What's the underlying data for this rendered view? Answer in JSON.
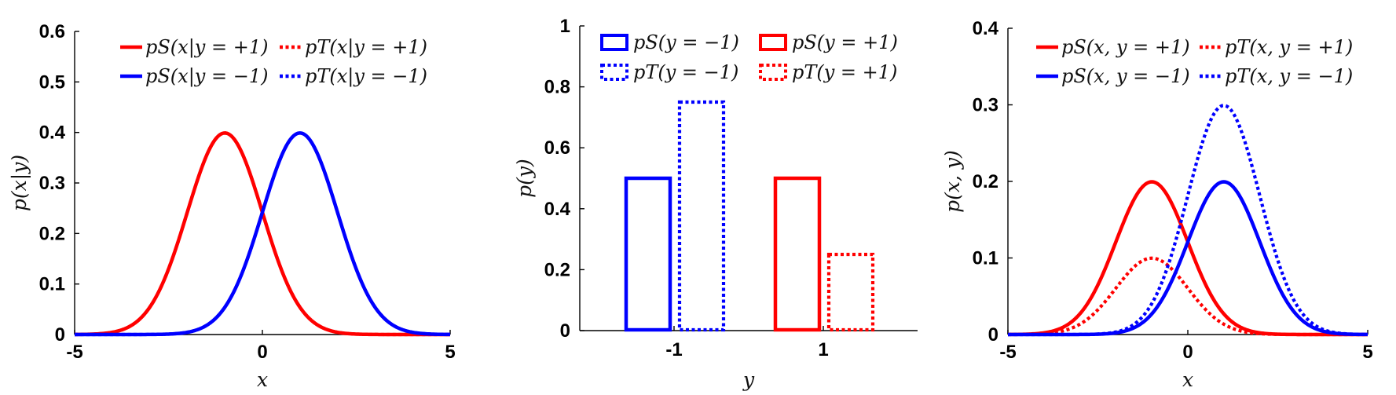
{
  "colors": {
    "red": "#ff0000",
    "blue": "#0000ff",
    "axis": "#000000"
  },
  "chart_data": [
    {
      "type": "line",
      "title": "",
      "xlabel": "x",
      "ylabel": "p(x|y)",
      "xlim": [
        -5,
        5
      ],
      "ylim": [
        0,
        0.6
      ],
      "xticks": [
        "-5",
        "0",
        "5"
      ],
      "yticks": [
        "0",
        "0.1",
        "0.2",
        "0.3",
        "0.4",
        "0.5",
        "0.6"
      ],
      "legend_placement": "top",
      "series": [
        {
          "name": "pS(x|y = +1)",
          "color": "#ff0000",
          "dash": "solid",
          "mean": -1,
          "sd": 1,
          "scale": 1,
          "peak": 0.4
        },
        {
          "name": "pT(x|y = +1)",
          "color": "#ff0000",
          "dash": "dotted",
          "mean": -1,
          "sd": 1,
          "scale": 1,
          "peak": 0.4
        },
        {
          "name": "pS(x|y = −1)",
          "color": "#0000ff",
          "dash": "solid",
          "mean": 1,
          "sd": 1,
          "scale": 1,
          "peak": 0.4
        },
        {
          "name": "pT(x|y = −1)",
          "color": "#0000ff",
          "dash": "dotted",
          "mean": 1,
          "sd": 1,
          "scale": 1,
          "peak": 0.4
        }
      ]
    },
    {
      "type": "bar",
      "title": "",
      "xlabel": "y",
      "ylabel": "p(y)",
      "categories": [
        "-1",
        "1"
      ],
      "ylim": [
        0,
        1
      ],
      "yticks": [
        "0",
        "0.2",
        "0.4",
        "0.6",
        "0.8",
        "1"
      ],
      "legend_placement": "top",
      "series": [
        {
          "name": "pS(y = −1)",
          "color": "#0000ff",
          "dash": "solid",
          "category": "-1",
          "value": 0.5
        },
        {
          "name": "pT(y = −1)",
          "color": "#0000ff",
          "dash": "dotted",
          "category": "-1",
          "value": 0.75
        },
        {
          "name": "pS(y = +1)",
          "color": "#ff0000",
          "dash": "solid",
          "category": "1",
          "value": 0.5
        },
        {
          "name": "pT(y = +1)",
          "color": "#ff0000",
          "dash": "dotted",
          "category": "1",
          "value": 0.25
        }
      ]
    },
    {
      "type": "line",
      "title": "",
      "xlabel": "x",
      "ylabel": "p(x, y)",
      "xlim": [
        -5,
        5
      ],
      "ylim": [
        0,
        0.4
      ],
      "xticks": [
        "-5",
        "0",
        "5"
      ],
      "yticks": [
        "0",
        "0.1",
        "0.2",
        "0.3",
        "0.4"
      ],
      "legend_placement": "top",
      "series": [
        {
          "name": "pS(x, y = +1)",
          "color": "#ff0000",
          "dash": "solid",
          "mean": -1,
          "sd": 1,
          "scale": 0.5,
          "peak": 0.2
        },
        {
          "name": "pT(x, y = +1)",
          "color": "#ff0000",
          "dash": "dotted",
          "mean": -1,
          "sd": 1,
          "scale": 0.25,
          "peak": 0.1
        },
        {
          "name": "pS(x, y = −1)",
          "color": "#0000ff",
          "dash": "solid",
          "mean": 1,
          "sd": 1,
          "scale": 0.5,
          "peak": 0.2
        },
        {
          "name": "pT(x, y = −1)",
          "color": "#0000ff",
          "dash": "dotted",
          "mean": 1,
          "sd": 1,
          "scale": 0.75,
          "peak": 0.3
        }
      ]
    }
  ]
}
